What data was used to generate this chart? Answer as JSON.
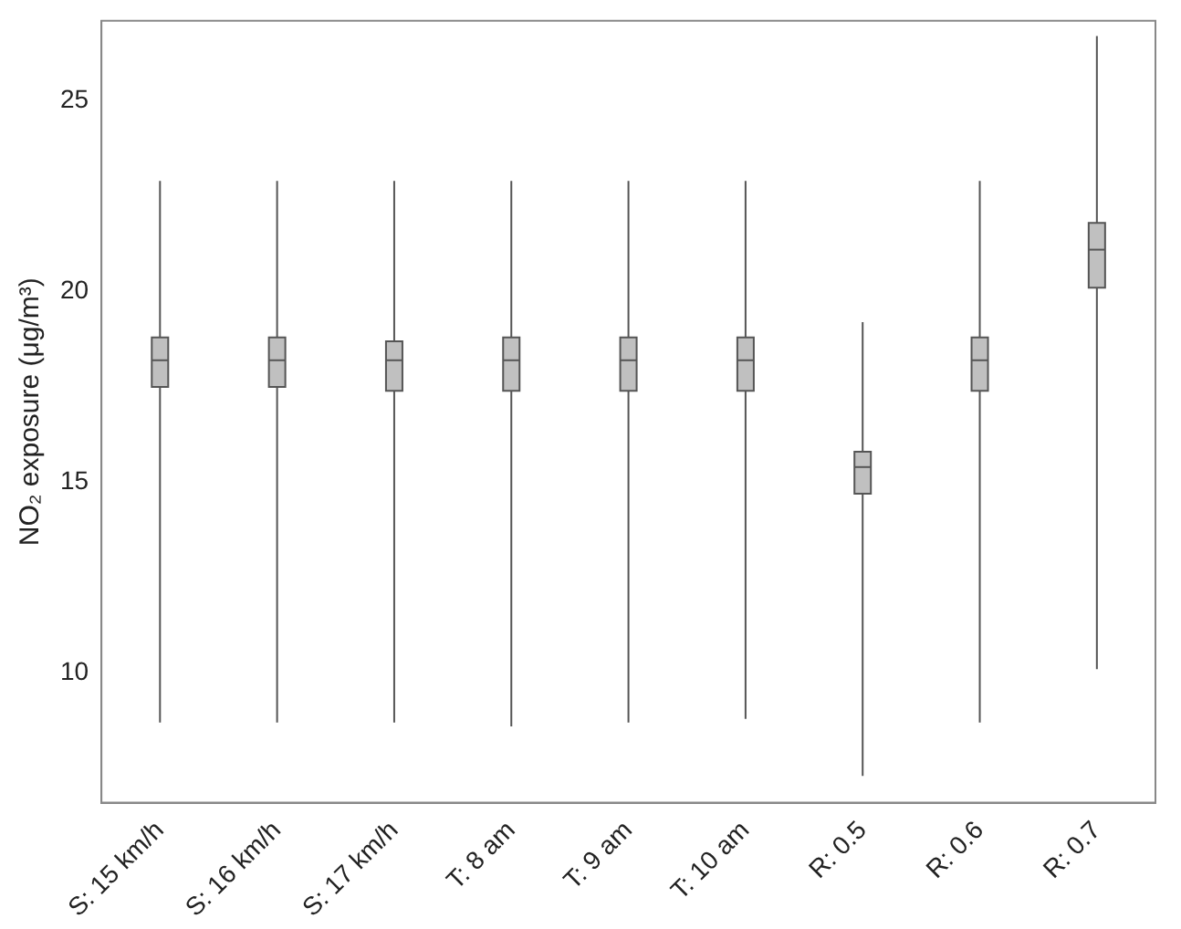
{
  "chart_data": {
    "type": "box",
    "ylabel": "NO₂ exposure (μg/m³)",
    "categories": [
      "S: 15 km/h",
      "S: 16 km/h",
      "S: 17 km/h",
      "T: 8 am",
      "T: 9 am",
      "T: 10 am",
      "R: 0.5",
      "R: 0.6",
      "R: 0.7"
    ],
    "color": "#c0c0c0",
    "boxes": [
      {
        "low": 8.7,
        "q1": 17.5,
        "median": 18.2,
        "q3": 18.8,
        "high": 22.9
      },
      {
        "low": 8.7,
        "q1": 17.5,
        "median": 18.2,
        "q3": 18.8,
        "high": 22.9
      },
      {
        "low": 8.7,
        "q1": 17.4,
        "median": 18.2,
        "q3": 18.7,
        "high": 22.9
      },
      {
        "low": 8.6,
        "q1": 17.4,
        "median": 18.2,
        "q3": 18.8,
        "high": 22.9
      },
      {
        "low": 8.7,
        "q1": 17.4,
        "median": 18.2,
        "q3": 18.8,
        "high": 22.9
      },
      {
        "low": 8.8,
        "q1": 17.4,
        "median": 18.2,
        "q3": 18.8,
        "high": 22.9
      },
      {
        "low": 7.3,
        "q1": 14.7,
        "median": 15.4,
        "q3": 15.8,
        "high": 19.2
      },
      {
        "low": 8.7,
        "q1": 17.4,
        "median": 18.2,
        "q3": 18.8,
        "high": 22.9
      },
      {
        "low": 10.1,
        "q1": 20.1,
        "median": 21.1,
        "q3": 21.8,
        "high": 26.7
      }
    ],
    "ylim": [
      6.6,
      27.1
    ],
    "yticks": [
      10,
      15,
      20,
      25
    ],
    "grid": false,
    "legend": false
  }
}
